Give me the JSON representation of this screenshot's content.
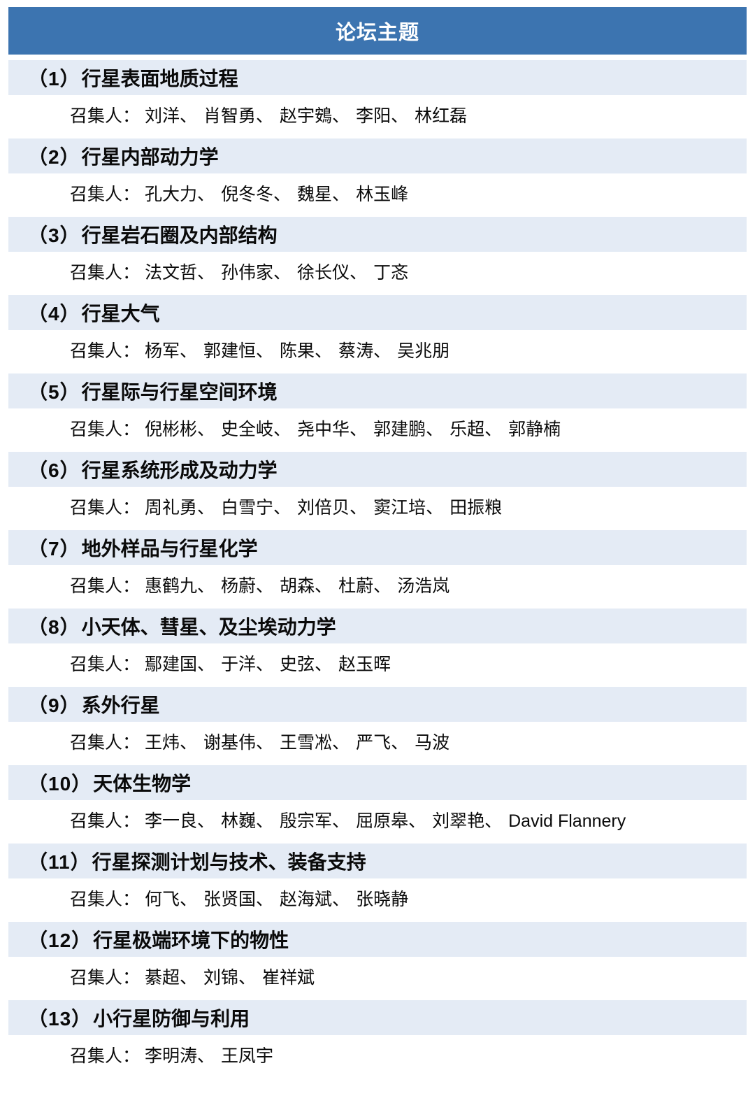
{
  "header": {
    "title": "论坛主题"
  },
  "labels": {
    "convener_label": "召集人：",
    "name_separator": "、"
  },
  "colors": {
    "header_bg": "#3C74B0",
    "header_text": "#FFFFFF",
    "band_bg": "#E4EBF5",
    "text": "#0A0A0A"
  },
  "topics": [
    {
      "num_label": "（1）",
      "title": "行星表面地质过程",
      "conveners": [
        "刘洋",
        "肖智勇",
        "赵宇鴳",
        "李阳",
        "林红磊"
      ]
    },
    {
      "num_label": "（2）",
      "title": "行星内部动力学",
      "conveners": [
        "孔大力",
        "倪冬冬",
        "魏星",
        "林玉峰"
      ]
    },
    {
      "num_label": "（3）",
      "title": "行星岩石圈及内部结构",
      "conveners": [
        "法文哲",
        "孙伟家",
        "徐长仪",
        "丁忞"
      ]
    },
    {
      "num_label": "（4）",
      "title": "行星大气",
      "conveners": [
        "杨军",
        "郭建恒",
        "陈果",
        "蔡涛",
        "吴兆朋"
      ]
    },
    {
      "num_label": "（5）",
      "title": "行星际与行星空间环境",
      "conveners": [
        "倪彬彬",
        "史全岐",
        "尧中华",
        "郭建鹏",
        "乐超",
        "郭静楠"
      ]
    },
    {
      "num_label": "（6）",
      "title": "行星系统形成及动力学",
      "conveners": [
        "周礼勇",
        "白雪宁",
        "刘倍贝",
        "窦江培",
        "田振粮"
      ]
    },
    {
      "num_label": "（7）",
      "title": "地外样品与行星化学",
      "conveners": [
        "惠鹤九",
        "杨蔚",
        "胡森",
        "杜蔚",
        "汤浩岚"
      ]
    },
    {
      "num_label": "（8）",
      "title": "小天体、彗星、及尘埃动力学",
      "conveners": [
        "鄢建国",
        "于洋",
        "史弦",
        "赵玉晖"
      ]
    },
    {
      "num_label": "（9）",
      "title": "系外行星",
      "conveners": [
        "王炜",
        "谢基伟",
        "王雪凇",
        "严飞",
        "马波"
      ]
    },
    {
      "num_label": "（10）",
      "title": "天体生物学",
      "conveners": [
        "李一良",
        "林巍",
        "殷宗军",
        "屈原皋",
        "刘翠艳",
        "David Flannery"
      ]
    },
    {
      "num_label": "（11）",
      "title": "行星探测计划与技术、装备支持",
      "conveners": [
        "何飞",
        "张贤国",
        "赵海斌",
        "张晓静"
      ]
    },
    {
      "num_label": "（12）",
      "title": "行星极端环境下的物性",
      "conveners": [
        "綦超",
        "刘锦",
        "崔祥斌"
      ]
    },
    {
      "num_label": "（13）",
      "title": "小行星防御与利用",
      "conveners": [
        "李明涛",
        "王凤宇"
      ]
    }
  ]
}
